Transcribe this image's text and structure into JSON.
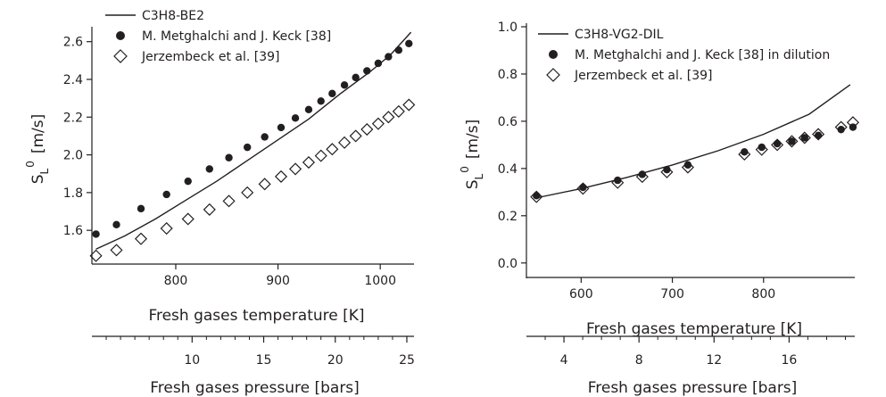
{
  "chart_data": [
    {
      "type": "scatter",
      "ylabel_main": "S",
      "ylabel_sub": "L",
      "ylabel_sup": "0",
      "ylabel_unit": "[m/s]",
      "xlabel": "Fresh gases temperature [K]",
      "x2label": "Fresh gases pressure [bars]",
      "xlim": [
        718,
        1033
      ],
      "ylim": [
        1.44,
        2.66
      ],
      "x2lim": [
        3.0,
        25.5
      ],
      "xticks": [
        800,
        900,
        1000
      ],
      "xtick_labels": [
        "800",
        "900",
        "1000"
      ],
      "yticks": [
        1.6,
        1.8,
        2.0,
        2.2,
        2.4,
        2.6
      ],
      "ytick_labels": [
        "1.6",
        "1.8",
        "2.0",
        "2.2",
        "2.4",
        "2.6"
      ],
      "x2ticks": [
        10,
        15,
        20,
        25
      ],
      "x2tick_labels": [
        "10",
        "15",
        "20",
        "25"
      ],
      "x2minor": [
        4,
        5,
        6,
        7,
        8,
        9,
        11,
        12,
        13,
        14,
        16,
        17,
        18,
        19,
        21,
        22,
        23,
        24
      ],
      "legend": {
        "placement": "top-left"
      },
      "series": [
        {
          "name": "C3H8-BE2",
          "style": "line",
          "color": "#231f20",
          "x": [
            722,
            750,
            780,
            810,
            840,
            870,
            900,
            930,
            960,
            990,
            1010,
            1030
          ],
          "y": [
            1.5,
            1.57,
            1.66,
            1.76,
            1.86,
            1.97,
            2.08,
            2.19,
            2.32,
            2.44,
            2.53,
            2.65
          ]
        },
        {
          "name": "M. Metghalchi and J. Keck [38]",
          "style": "filled-circle",
          "color": "#231f20",
          "x": [
            722,
            742,
            766,
            791,
            812,
            833,
            852,
            870,
            887,
            903,
            917,
            930,
            942,
            953,
            965,
            976,
            987,
            998,
            1008,
            1018,
            1028
          ],
          "y": [
            1.58,
            1.63,
            1.715,
            1.79,
            1.86,
            1.925,
            1.985,
            2.04,
            2.095,
            2.145,
            2.195,
            2.24,
            2.285,
            2.325,
            2.37,
            2.41,
            2.445,
            2.485,
            2.52,
            2.555,
            2.59
          ]
        },
        {
          "name": "Jerzembeck et al. [39]",
          "style": "open-diamond",
          "color": "#231f20",
          "x": [
            722,
            742,
            766,
            791,
            812,
            833,
            852,
            870,
            887,
            903,
            917,
            930,
            942,
            953,
            965,
            976,
            987,
            998,
            1008,
            1018,
            1028
          ],
          "y": [
            1.465,
            1.495,
            1.555,
            1.61,
            1.66,
            1.71,
            1.755,
            1.8,
            1.845,
            1.885,
            1.925,
            1.96,
            1.995,
            2.03,
            2.065,
            2.1,
            2.135,
            2.165,
            2.2,
            2.23,
            2.265
          ]
        }
      ]
    },
    {
      "type": "scatter",
      "ylabel_main": "S",
      "ylabel_sub": "L",
      "ylabel_sup": "0",
      "ylabel_unit": "[m/s]",
      "xlabel": "Fresh gases temperature [K]",
      "x2label": "Fresh gases pressure [bars]",
      "xlim": [
        540,
        900
      ],
      "ylim": [
        -0.05,
        1.0
      ],
      "x2lim": [
        2.0,
        19.5
      ],
      "xticks": [
        600,
        700,
        800
      ],
      "xtick_labels": [
        "600",
        "700",
        "800"
      ],
      "yticks": [
        0.0,
        0.2,
        0.4,
        0.6,
        0.8,
        1.0
      ],
      "ytick_labels": [
        "0.0",
        "0.2",
        "0.4",
        "0.6",
        "0.8",
        "1.0"
      ],
      "x2ticks": [
        4,
        8,
        12,
        16
      ],
      "x2tick_labels": [
        "4",
        "8",
        "12",
        "16"
      ],
      "x2minor": [
        3,
        5,
        6,
        7,
        9,
        10,
        11,
        13,
        14,
        15,
        17,
        18,
        19
      ],
      "legend": {
        "placement": "top-left"
      },
      "series": [
        {
          "name": "C3H8-VG2-DIL",
          "style": "line",
          "color": "#231f20",
          "x": [
            550,
            600,
            650,
            700,
            750,
            800,
            850,
            895
          ],
          "y": [
            0.275,
            0.315,
            0.362,
            0.415,
            0.475,
            0.545,
            0.63,
            0.755
          ]
        },
        {
          "name": "M. Metghalchi and J. Keck [38] in dilution",
          "style": "filled-circle",
          "color": "#231f20",
          "x": [
            551,
            602,
            640,
            667,
            694,
            717,
            779,
            798,
            815,
            831,
            845,
            860,
            885,
            898
          ],
          "y": [
            0.285,
            0.32,
            0.35,
            0.375,
            0.395,
            0.415,
            0.47,
            0.49,
            0.505,
            0.515,
            0.53,
            0.54,
            0.565,
            0.575
          ]
        },
        {
          "name": "Jerzembeck et al. [39]",
          "style": "open-diamond",
          "color": "#231f20",
          "x": [
            551,
            602,
            640,
            667,
            694,
            717,
            779,
            798,
            815,
            831,
            845,
            860,
            885,
            898
          ],
          "y": [
            0.28,
            0.315,
            0.34,
            0.365,
            0.385,
            0.405,
            0.46,
            0.48,
            0.5,
            0.515,
            0.53,
            0.545,
            0.575,
            0.595
          ]
        }
      ]
    }
  ]
}
